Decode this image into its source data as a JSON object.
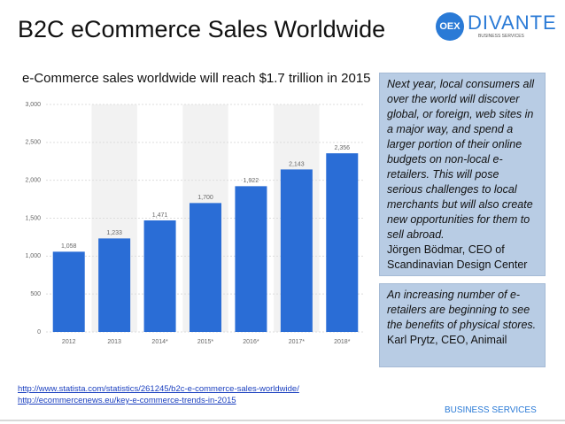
{
  "slide": {
    "title": "B2C eCommerce Sales Worldwide",
    "logo": {
      "mark": "OEX",
      "name": "DIVANTE",
      "tagline": "BUSINESS SERVICES"
    },
    "quote1": {
      "text": "Next year, local consumers all over the world will discover global, or foreign, web sites in a major way, and spend a larger portion of their online budgets on non-local e-retailers. This will pose serious challenges to local merchants but will also create new opportunities for them to sell abroad.",
      "author": "Jörgen Bödmar, CEO of Scandinavian Design Center"
    },
    "quote2": {
      "text": "An increasing number of e-retailers are beginning to see the benefits of physical stores.",
      "author": "Karl Prytz, CEO, Animail"
    },
    "sources": [
      "http://www.statista.com/statistics/261245/b2c-e-commerce-sales-worldwide/",
      "http://ecommercenews.eu/key-e-commerce-trends-in-2015"
    ],
    "footer": "BUSINESS SERVICES"
  },
  "chart_data": {
    "type": "bar",
    "title": "e-Commerce sales worldwide will reach $1.7 trillion in 2015",
    "categories": [
      "2012",
      "2013",
      "2014*",
      "2015*",
      "2016*",
      "2017*",
      "2018*"
    ],
    "values": [
      1058,
      1233,
      1471,
      1700,
      1922,
      2143,
      2356
    ],
    "value_labels": [
      "1,058",
      "1,233",
      "1,471",
      "1,700",
      "1,922",
      "2,143",
      "2,356"
    ],
    "color": "#2a6dd6",
    "ylim": [
      0,
      3000
    ],
    "yticks": [
      0,
      500,
      {
        "value": 1000,
        "label": "1,000"
      },
      {
        "value": 1500,
        "label": "1,500"
      },
      {
        "value": 2000,
        "label": "2,000"
      },
      {
        "value": 2500,
        "label": "2,500"
      },
      {
        "value": 3000,
        "label": "3,000"
      }
    ],
    "grid": true
  }
}
